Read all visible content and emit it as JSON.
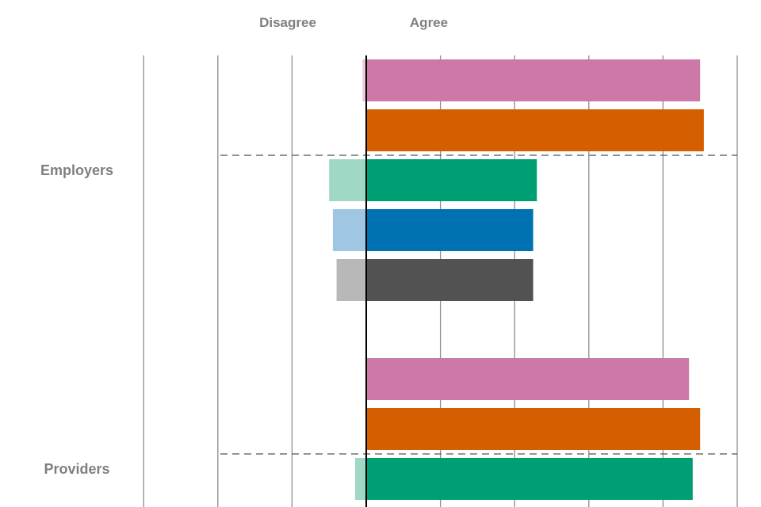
{
  "chart_data": {
    "type": "bar",
    "orientation": "horizontal-diverging",
    "header_labels": {
      "left": "Disagree",
      "right": "Agree"
    },
    "groups": [
      {
        "label": "Employers",
        "bars": [
          {
            "color": "#cc79a7",
            "disagree": 1,
            "agree": 90
          },
          {
            "color": "#d55e00",
            "disagree": 0,
            "agree": 91
          },
          {
            "color": "#009e73",
            "disagree": 10,
            "agree": 46
          },
          {
            "color": "#0072b2",
            "disagree": 9,
            "agree": 45
          },
          {
            "color": "#525252",
            "disagree": 8,
            "agree": 45
          }
        ]
      },
      {
        "label": "Providers",
        "bars": [
          {
            "color": "#cc79a7",
            "disagree": 0,
            "agree": 87
          },
          {
            "color": "#d55e00",
            "disagree": 0,
            "agree": 90
          },
          {
            "color": "#009e73",
            "disagree": 3,
            "agree": 88
          }
        ]
      }
    ],
    "light_colors": {
      "#cc79a7": "#ebc9dc",
      "#d55e00": "#f2c3a0",
      "#009e73": "#9fd9c6",
      "#0072b2": "#9fc7e3",
      "#525252": "#b8b8b8"
    },
    "xlim": [
      -60,
      100
    ],
    "grid_interval": 20,
    "grid": true
  }
}
